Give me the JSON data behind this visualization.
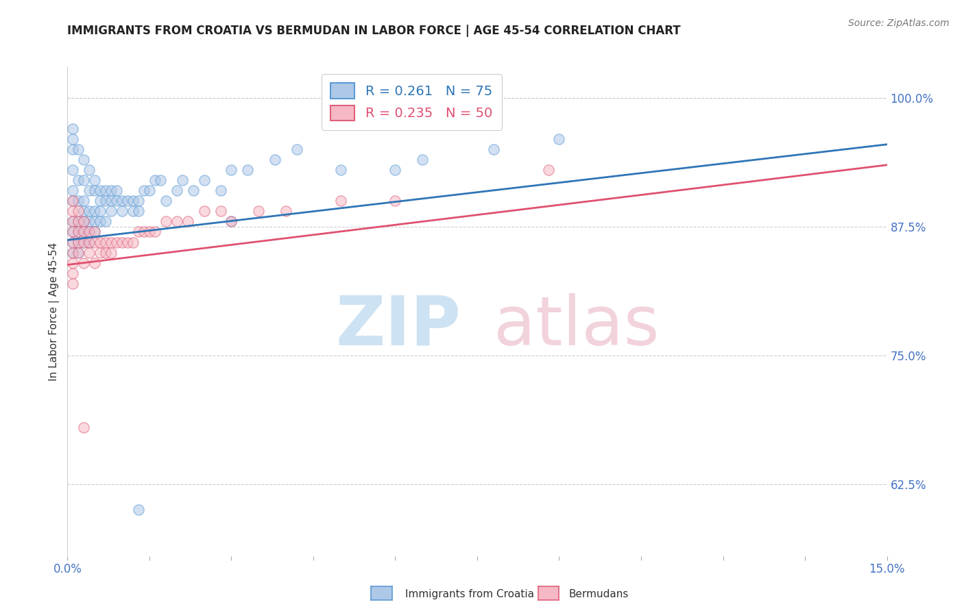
{
  "title": "IMMIGRANTS FROM CROATIA VS BERMUDAN IN LABOR FORCE | AGE 45-54 CORRELATION CHART",
  "source": "Source: ZipAtlas.com",
  "ylabel": "In Labor Force | Age 45-54",
  "xlim": [
    0.0,
    0.15
  ],
  "ylim": [
    0.555,
    1.03
  ],
  "xtick_positions": [
    0.0,
    0.015,
    0.03,
    0.045,
    0.06,
    0.075,
    0.09,
    0.105,
    0.12,
    0.135,
    0.15
  ],
  "yticks_right": [
    0.625,
    0.75,
    0.875,
    1.0
  ],
  "yticklabels_right": [
    "62.5%",
    "75.0%",
    "87.5%",
    "100.0%"
  ],
  "legend_r_croatia": "0.261",
  "legend_n_croatia": "75",
  "legend_r_bermuda": "0.235",
  "legend_n_bermuda": "50",
  "color_croatia_fill": "#aec8e8",
  "color_croatia_edge": "#5b9bd5",
  "color_bermuda_fill": "#f5b8c4",
  "color_bermuda_edge": "#e0607a",
  "color_line_croatia": "#2e75b6",
  "color_line_bermuda": "#e05070",
  "trendline_croatia": [
    0.0,
    0.15,
    0.862,
    0.955
  ],
  "trendline_bermuda": [
    0.0,
    0.15,
    0.838,
    0.935
  ],
  "croatia_x": [
    0.001,
    0.001,
    0.001,
    0.001,
    0.001,
    0.001,
    0.001,
    0.001,
    0.001,
    0.001,
    0.002,
    0.002,
    0.002,
    0.002,
    0.002,
    0.002,
    0.002,
    0.003,
    0.003,
    0.003,
    0.003,
    0.003,
    0.003,
    0.003,
    0.004,
    0.004,
    0.004,
    0.004,
    0.004,
    0.004,
    0.005,
    0.005,
    0.005,
    0.005,
    0.005,
    0.006,
    0.006,
    0.006,
    0.006,
    0.007,
    0.007,
    0.007,
    0.008,
    0.008,
    0.008,
    0.009,
    0.009,
    0.01,
    0.01,
    0.011,
    0.012,
    0.012,
    0.013,
    0.013,
    0.014,
    0.015,
    0.016,
    0.017,
    0.018,
    0.02,
    0.021,
    0.023,
    0.025,
    0.028,
    0.03,
    0.033,
    0.038,
    0.042,
    0.05,
    0.06,
    0.065,
    0.078,
    0.09,
    0.03,
    0.013
  ],
  "croatia_y": [
    0.97,
    0.96,
    0.95,
    0.93,
    0.91,
    0.9,
    0.88,
    0.87,
    0.86,
    0.85,
    0.95,
    0.92,
    0.9,
    0.88,
    0.87,
    0.86,
    0.85,
    0.94,
    0.92,
    0.9,
    0.89,
    0.88,
    0.87,
    0.86,
    0.93,
    0.91,
    0.89,
    0.88,
    0.87,
    0.86,
    0.92,
    0.91,
    0.89,
    0.88,
    0.87,
    0.91,
    0.9,
    0.89,
    0.88,
    0.91,
    0.9,
    0.88,
    0.91,
    0.9,
    0.89,
    0.91,
    0.9,
    0.9,
    0.89,
    0.9,
    0.9,
    0.89,
    0.9,
    0.89,
    0.91,
    0.91,
    0.92,
    0.92,
    0.9,
    0.91,
    0.92,
    0.91,
    0.92,
    0.91,
    0.93,
    0.93,
    0.94,
    0.95,
    0.93,
    0.93,
    0.94,
    0.95,
    0.96,
    0.88,
    0.6
  ],
  "bermuda_x": [
    0.001,
    0.001,
    0.001,
    0.001,
    0.001,
    0.001,
    0.001,
    0.001,
    0.001,
    0.002,
    0.002,
    0.002,
    0.002,
    0.002,
    0.003,
    0.003,
    0.003,
    0.003,
    0.004,
    0.004,
    0.004,
    0.005,
    0.005,
    0.005,
    0.006,
    0.006,
    0.007,
    0.007,
    0.008,
    0.008,
    0.009,
    0.01,
    0.011,
    0.012,
    0.013,
    0.014,
    0.015,
    0.016,
    0.018,
    0.02,
    0.022,
    0.025,
    0.028,
    0.03,
    0.035,
    0.04,
    0.05,
    0.06,
    0.088,
    0.003
  ],
  "bermuda_y": [
    0.9,
    0.89,
    0.88,
    0.87,
    0.86,
    0.85,
    0.84,
    0.83,
    0.82,
    0.89,
    0.88,
    0.87,
    0.86,
    0.85,
    0.88,
    0.87,
    0.86,
    0.84,
    0.87,
    0.86,
    0.85,
    0.87,
    0.86,
    0.84,
    0.86,
    0.85,
    0.86,
    0.85,
    0.86,
    0.85,
    0.86,
    0.86,
    0.86,
    0.86,
    0.87,
    0.87,
    0.87,
    0.87,
    0.88,
    0.88,
    0.88,
    0.89,
    0.89,
    0.88,
    0.89,
    0.89,
    0.9,
    0.9,
    0.93,
    0.68
  ]
}
